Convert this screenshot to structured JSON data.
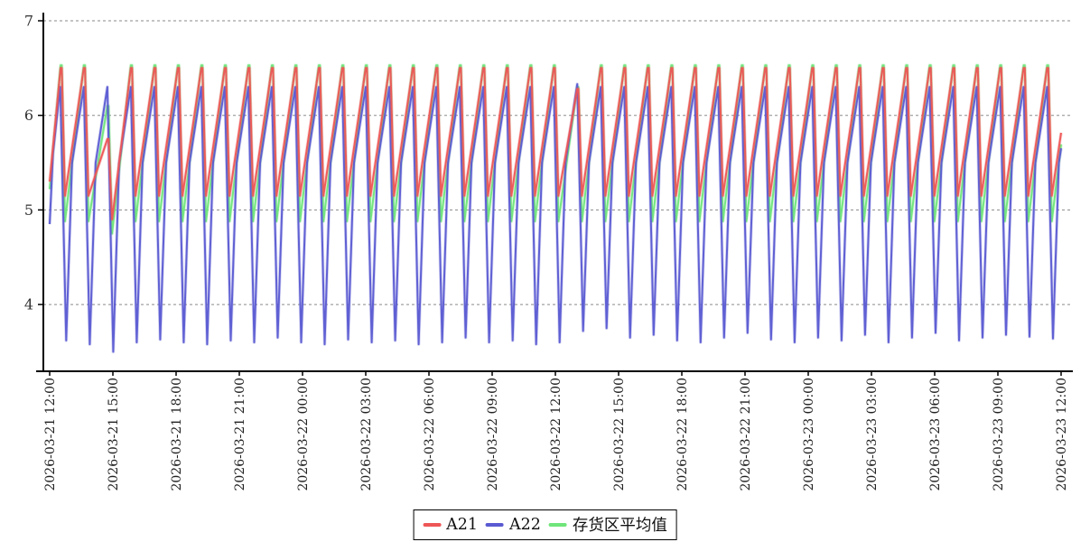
{
  "chart_data": {
    "type": "line",
    "title": "",
    "x_axis": {
      "span_hours": 48,
      "tick_interval_hours": 3,
      "labels": [
        "2026-03-21 12:00",
        "2026-03-21 15:00",
        "2026-03-21 18:00",
        "2026-03-21 21:00",
        "2026-03-22 00:00",
        "2026-03-22 03:00",
        "2026-03-22 06:00",
        "2026-03-22 09:00",
        "2026-03-22 12:00",
        "2026-03-22 15:00",
        "2026-03-22 18:00",
        "2026-03-22 21:00",
        "2026-03-23 00:00",
        "2026-03-23 03:00",
        "2026-03-23 06:00",
        "2026-03-23 09:00",
        "2026-03-23 12:00"
      ]
    },
    "y_axis": {
      "ticks": [
        7,
        6,
        5,
        4
      ],
      "min": 3.3,
      "max": 7.2,
      "grid": "dashed"
    },
    "legend_position": "bottom-center",
    "series": [
      {
        "name": "A21",
        "color": "#ee5555"
      },
      {
        "name": "A22",
        "color": "#5a5ad2"
      },
      {
        "name": "存货区平均值",
        "color": "#6fe57a"
      }
    ],
    "pattern": {
      "description": "repeating defrost-style sawtooth cycles read from plot",
      "first_dip_hours": 0.73,
      "period_hours": 1.115,
      "cycles": 42,
      "a21": {
        "dip": 5.15,
        "peak": 6.5,
        "rise_frac": 0.8,
        "hold_frac": 0.05
      },
      "avg": {
        "dip": 4.88,
        "peak": 6.53,
        "rise_frac": 0.8,
        "hold_frac": 0.05
      },
      "a22": {
        "rejoin": 5.5,
        "rejoin_frac": 0.3,
        "peak": 6.3,
        "peak_frac": 0.8,
        "trough_frac": 0.05
      },
      "lead_in": {
        "a21": [
          [
            0,
            5.3
          ],
          [
            0.52,
            6.5
          ],
          [
            0.575,
            6.5
          ]
        ],
        "avg": [
          [
            0,
            5.22
          ],
          [
            0.52,
            6.53
          ],
          [
            0.575,
            6.53
          ]
        ],
        "a22": [
          [
            0,
            4.85
          ],
          [
            0.16,
            5.6
          ],
          [
            0.5,
            6.3
          ]
        ]
      },
      "a22_troughs": [
        3.62,
        3.58,
        3.5,
        3.6,
        3.63,
        3.6,
        3.58,
        3.62,
        3.6,
        3.65,
        3.6,
        3.58,
        3.63,
        3.6,
        3.62,
        3.58,
        3.6,
        3.65,
        3.6,
        3.62,
        3.58,
        3.6,
        3.72,
        3.75,
        3.65,
        3.68,
        3.62,
        3.6,
        3.65,
        3.7,
        3.63,
        3.6,
        3.65,
        3.62,
        3.68,
        3.6,
        3.65,
        3.7,
        3.62,
        3.65,
        3.68,
        3.66,
        3.64
      ],
      "anomalies": [
        {
          "cycle": 1,
          "a21_peak": 5.75,
          "avg_peak": 6.1,
          "a22_peak": 6.3,
          "a21_dip_after": 4.9,
          "avg_dip_after": 4.75
        },
        {
          "cycle": 21,
          "a21_peak": 6.28,
          "avg_peak": 6.3,
          "a22_peak": 6.33
        }
      ]
    },
    "end_values": {
      "a21": 5.82,
      "a22": 5.65,
      "avg": 5.69
    }
  }
}
